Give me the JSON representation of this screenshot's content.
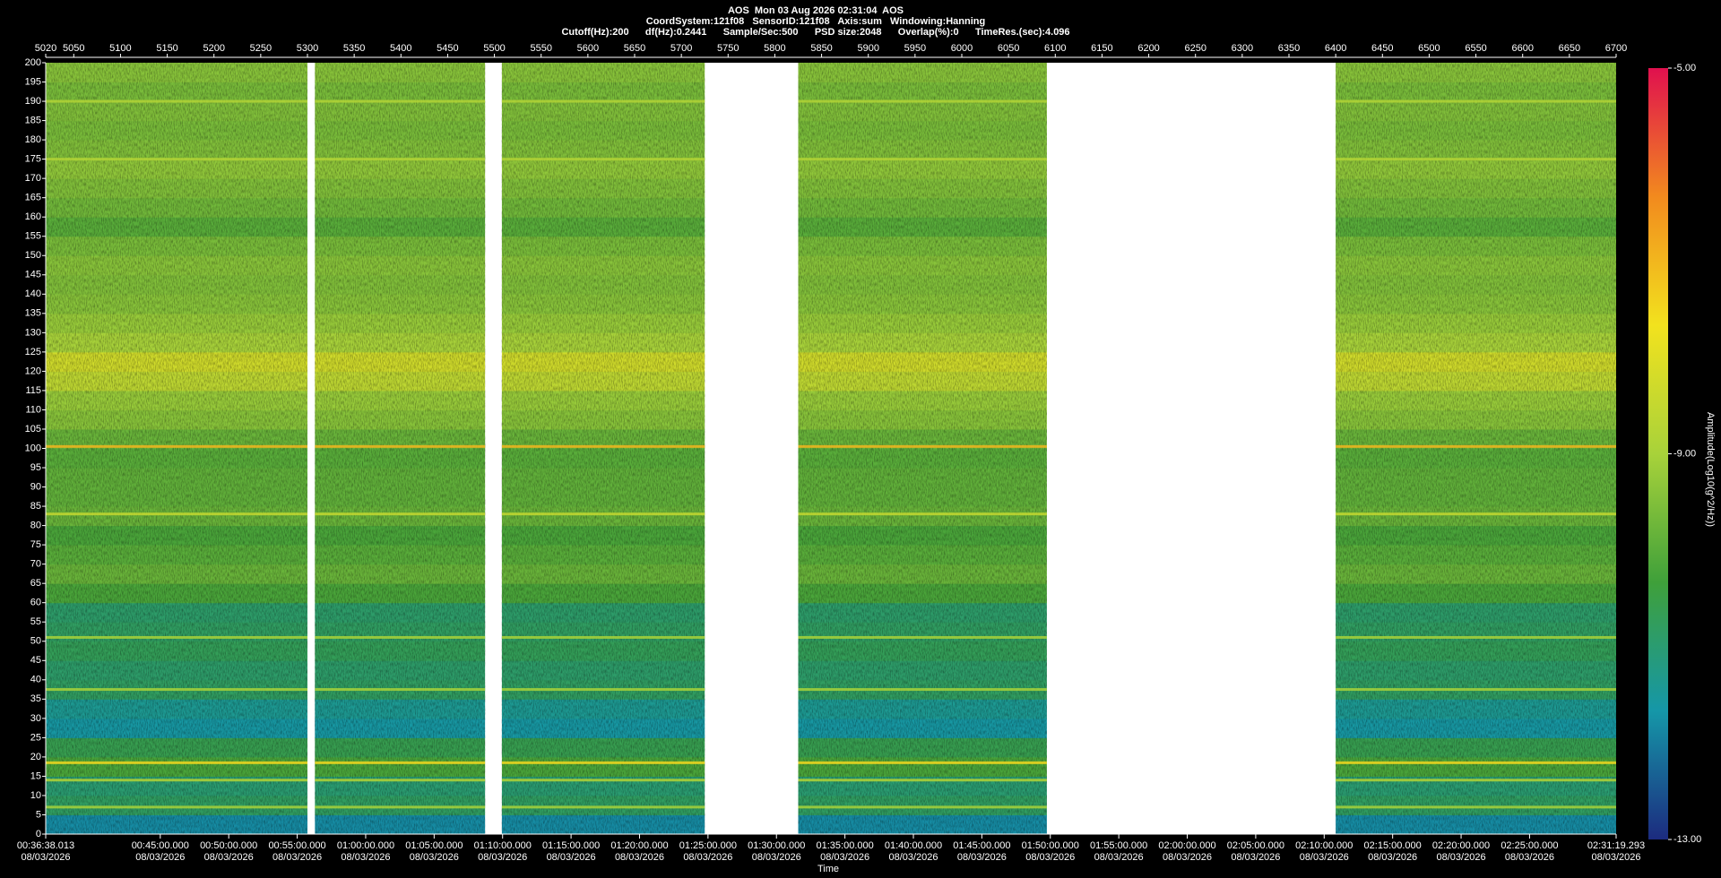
{
  "chart_data": {
    "type": "spectrogram",
    "title": "AOS  Mon 03 Aug 2026 02:31:04  AOS",
    "subtitles": [
      "CoordSystem:121f08   SensorID:121f08   Axis:sum   Windowing:Hanning",
      "Cutoff(Hz):200      df(Hz):0.2441      Sample/Sec:500      PSD size:2048      Overlap(%):0      TimeRes.(sec):4.096"
    ],
    "x_label": "Time",
    "colorbar_label": "Amplitude(Log10(g^2/Hz))",
    "xlim": [
      5020,
      6700
    ],
    "xticks": [
      5020,
      5050,
      5100,
      5150,
      5200,
      5250,
      5300,
      5350,
      5400,
      5450,
      5500,
      5550,
      5600,
      5650,
      5700,
      5750,
      5800,
      5850,
      5900,
      5950,
      6000,
      6050,
      6100,
      6150,
      6200,
      6250,
      6300,
      6350,
      6400,
      6450,
      6500,
      6550,
      6600,
      6650,
      6700
    ],
    "x2lim": [
      "2026-08-03T00:36:38.013Z",
      "2026-08-03T02:31:19.293Z"
    ],
    "x2ticks": [
      {
        "value": "2026-08-03T00:36:38.013Z",
        "label": "00:36:38.013 08/03/2026"
      },
      {
        "value": "2026-08-03T00:45:00.000Z",
        "label": "00:45:00.000 08/03/2026"
      },
      {
        "value": "2026-08-03T00:50:00.000Z",
        "label": "00:50:00.000 08/03/2026"
      },
      {
        "value": "2026-08-03T00:55:00.000Z",
        "label": "00:55:00.000 08/03/2026"
      },
      {
        "value": "2026-08-03T01:00:00.000Z",
        "label": "01:00:00.000 08/03/2026"
      },
      {
        "value": "2026-08-03T01:05:00.000Z",
        "label": "01:05:00.000 08/03/2026"
      },
      {
        "value": "2026-08-03T01:10:00.000Z",
        "label": "01:10:00.000 08/03/2026"
      },
      {
        "value": "2026-08-03T01:15:00.000Z",
        "label": "01:15:00.000 08/03/2026"
      },
      {
        "value": "2026-08-03T01:20:00.000Z",
        "label": "01:20:00.000 08/03/2026"
      },
      {
        "value": "2026-08-03T01:25:00.000Z",
        "label": "01:25:00.000 08/03/2026"
      },
      {
        "value": "2026-08-03T01:30:00.000Z",
        "label": "01:30:00.000 08/03/2026"
      },
      {
        "value": "2026-08-03T01:35:00.000Z",
        "label": "01:35:00.000 08/03/2026"
      },
      {
        "value": "2026-08-03T01:40:00.000Z",
        "label": "01:40:00.000 08/03/2026"
      },
      {
        "value": "2026-08-03T01:45:00.000Z",
        "label": "01:45:00.000 08/03/2026"
      },
      {
        "value": "2026-08-03T01:50:00.000Z",
        "label": "01:50:00.000 08/03/2026"
      },
      {
        "value": "2026-08-03T01:55:00.000Z",
        "label": "01:55:00.000 08/03/2026"
      },
      {
        "value": "2026-08-03T02:00:00.000Z",
        "label": "02:00:00.000 08/03/2026"
      },
      {
        "value": "2026-08-03T02:05:00.000Z",
        "label": "02:05:00.000 08/03/2026"
      },
      {
        "value": "2026-08-03T02:10:00.000Z",
        "label": "02:10:00.000 08/03/2026"
      },
      {
        "value": "2026-08-03T02:15:00.000Z",
        "label": "02:15:00.000 08/03/2026"
      },
      {
        "value": "2026-08-03T02:20:00.000Z",
        "label": "02:20:00.000 08/03/2026"
      },
      {
        "value": "2026-08-03T02:25:00.000Z",
        "label": "02:25:00.000 08/03/2026"
      },
      {
        "value": "2026-08-03T02:31:19.293Z",
        "label": "02:31:19.293 08/03/2026"
      }
    ],
    "ylim": [
      0,
      200
    ],
    "yticks": [
      0,
      5,
      10,
      15,
      20,
      25,
      30,
      35,
      40,
      45,
      50,
      55,
      60,
      65,
      70,
      75,
      80,
      85,
      90,
      95,
      100,
      105,
      110,
      115,
      120,
      125,
      130,
      135,
      140,
      145,
      150,
      155,
      160,
      165,
      170,
      175,
      180,
      185,
      190,
      195,
      200
    ],
    "clim": [
      -13,
      -5
    ],
    "cticks": [
      {
        "value": -13,
        "label": "-13.00"
      },
      {
        "value": -9,
        "label": "-9.00"
      },
      {
        "value": -5,
        "label": "-5.00"
      }
    ],
    "colormap": [
      "#1c2b7f",
      "#1597a8",
      "#3fa03a",
      "#a8d23a",
      "#f2e21e",
      "#f28a1e",
      "#e0104e"
    ],
    "segments": [
      [
        5020,
        5300
      ],
      [
        5308,
        5490
      ],
      [
        5508,
        5725
      ],
      [
        5825,
        6091
      ],
      [
        6400,
        6700
      ]
    ],
    "freq_bins": [
      0,
      5,
      10,
      15,
      20,
      25,
      30,
      35,
      40,
      45,
      50,
      55,
      60,
      65,
      70,
      75,
      80,
      85,
      90,
      95,
      100,
      105,
      110,
      115,
      120,
      125,
      130,
      135,
      140,
      145,
      150,
      155,
      160,
      165,
      170,
      175,
      180,
      185,
      190,
      195,
      200
    ],
    "values": [
      -11.8,
      -10.8,
      -11.0,
      -10.2,
      -10.6,
      -11.6,
      -11.4,
      -10.8,
      -10.9,
      -10.7,
      -10.8,
      -10.9,
      -10.2,
      -9.8,
      -10.0,
      -10.2,
      -9.8,
      -9.9,
      -9.9,
      -10.0,
      -9.8,
      -9.4,
      -9.2,
      -8.6,
      -8.3,
      -9.0,
      -9.2,
      -9.4,
      -9.5,
      -9.4,
      -9.6,
      -10.0,
      -9.7,
      -9.5,
      -9.3,
      -9.5,
      -9.6,
      -9.5,
      -9.6,
      -9.4
    ],
    "lines": [
      {
        "freq": 100.5,
        "value": -7.0
      },
      {
        "freq": 83,
        "value": -8.5
      },
      {
        "freq": 51,
        "value": -9.0
      },
      {
        "freq": 37.5,
        "value": -9.0
      },
      {
        "freq": 190,
        "value": -8.8
      },
      {
        "freq": 175,
        "value": -8.8
      },
      {
        "freq": 18.5,
        "value": -7.5
      },
      {
        "freq": 14,
        "value": -8.8
      },
      {
        "freq": 7,
        "value": -9.0
      }
    ]
  }
}
